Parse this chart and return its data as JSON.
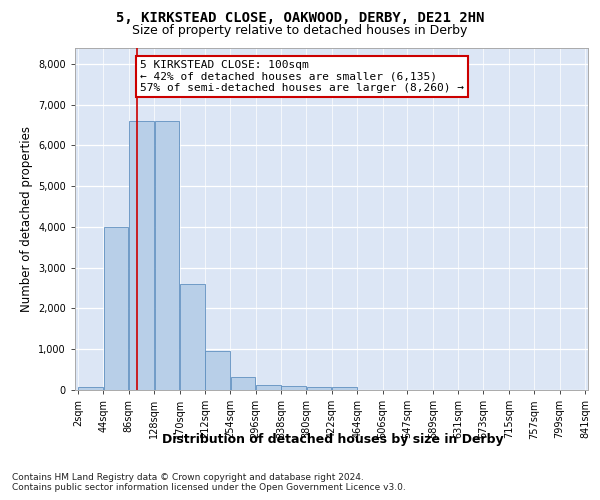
{
  "title_line1": "5, KIRKSTEAD CLOSE, OAKWOOD, DERBY, DE21 2HN",
  "title_line2": "Size of property relative to detached houses in Derby",
  "xlabel": "Distribution of detached houses by size in Derby",
  "ylabel": "Number of detached properties",
  "bin_edges": [
    2,
    44,
    86,
    128,
    170,
    212,
    254,
    296,
    338,
    380,
    422,
    464,
    506,
    547,
    589,
    631,
    673,
    715,
    757,
    799,
    841
  ],
  "bar_heights": [
    70,
    4000,
    6600,
    6600,
    2600,
    950,
    320,
    130,
    100,
    70,
    70,
    0,
    0,
    0,
    0,
    0,
    0,
    0,
    0,
    0
  ],
  "bar_color": "#b8cfe8",
  "bar_edge_color": "#6090c0",
  "property_size": 100,
  "vline_color": "#cc0000",
  "annotation_text": "5 KIRKSTEAD CLOSE: 100sqm\n← 42% of detached houses are smaller (6,135)\n57% of semi-detached houses are larger (8,260) →",
  "annotation_box_color": "#ffffff",
  "annotation_box_edge_color": "#cc0000",
  "ylim": [
    0,
    8400
  ],
  "yticks": [
    0,
    1000,
    2000,
    3000,
    4000,
    5000,
    6000,
    7000,
    8000
  ],
  "axes_bg_color": "#dce6f5",
  "footer_text": "Contains HM Land Registry data © Crown copyright and database right 2024.\nContains public sector information licensed under the Open Government Licence v3.0.",
  "title_fontsize": 10,
  "subtitle_fontsize": 9,
  "axis_label_fontsize": 8.5,
  "tick_fontsize": 7,
  "annotation_fontsize": 8,
  "footer_fontsize": 6.5
}
